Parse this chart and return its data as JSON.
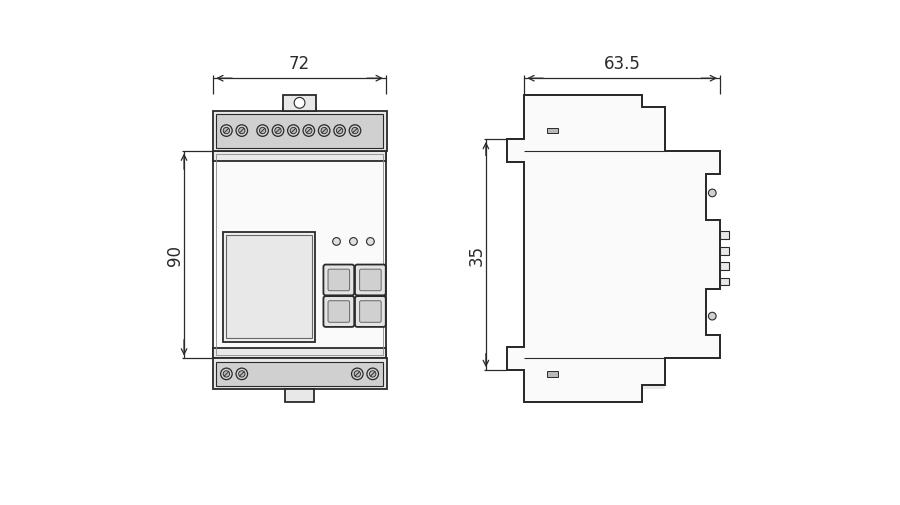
{
  "bg_color": "#ffffff",
  "lc": "#2a2a2a",
  "lc_thin": "#444444",
  "lc_dim": "#2a2a2a",
  "gray_fill": "#e8e8e8",
  "gray_mid": "#d0d0d0",
  "gray_dark": "#b8b8b8",
  "dim_72": "72",
  "dim_635": "63.5",
  "dim_90": "90",
  "dim_35": "35",
  "lw": 1.3,
  "lw_thin": 0.8,
  "lw_dim": 0.9
}
